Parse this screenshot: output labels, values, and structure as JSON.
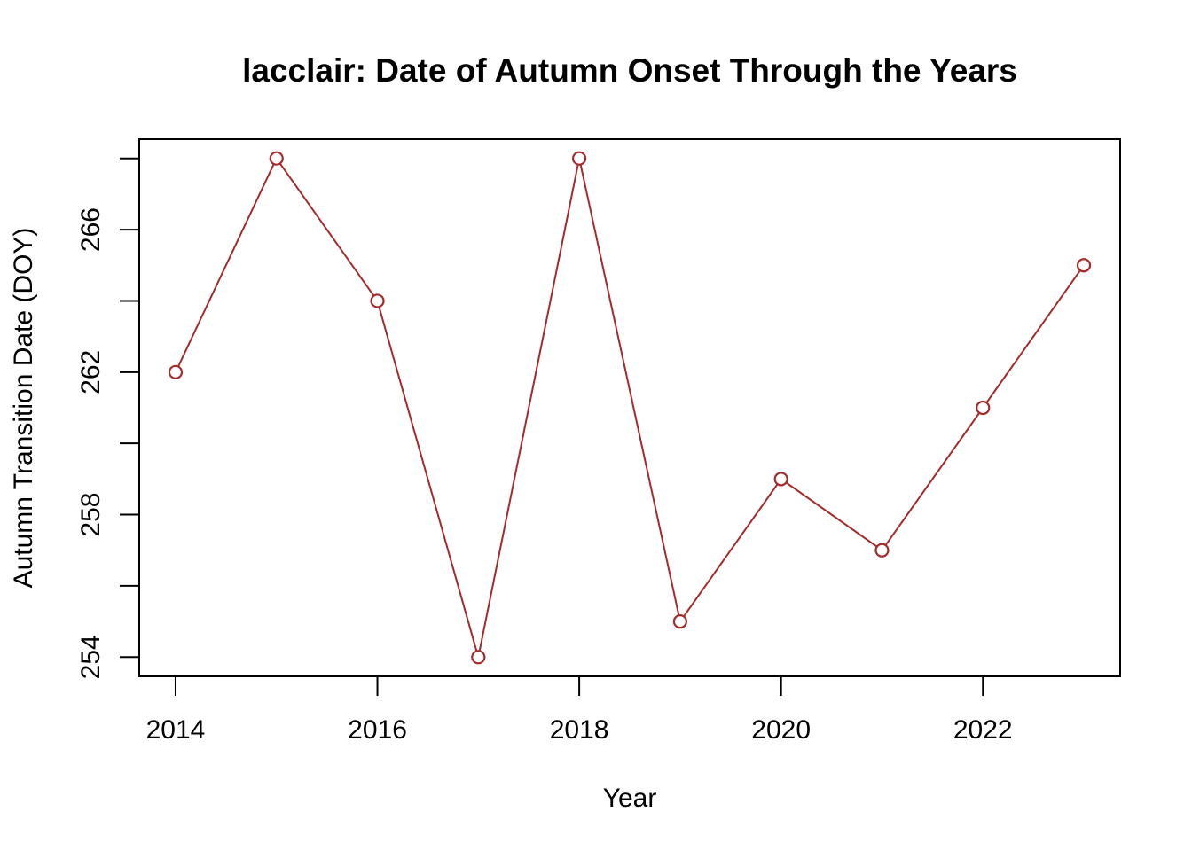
{
  "chart_data": {
    "type": "line",
    "title": "lacclair: Date of Autumn Onset Through the Years",
    "xlabel": "Year",
    "ylabel": "Autumn Transition Date (DOY)",
    "x": [
      2014,
      2015,
      2016,
      2017,
      2018,
      2019,
      2020,
      2021,
      2022,
      2023
    ],
    "series": [
      {
        "values": [
          262,
          268,
          264,
          254,
          268,
          255,
          259,
          257,
          261,
          265
        ]
      }
    ],
    "xticks": [
      2014,
      2016,
      2018,
      2020,
      2022
    ],
    "xtick_labels": [
      "2014",
      "2016",
      "2018",
      "2020",
      "2022"
    ],
    "yticks": [
      254,
      256,
      258,
      260,
      262,
      264,
      266,
      268
    ],
    "ytick_labels": [
      "254",
      "",
      "258",
      "",
      "262",
      "",
      "266",
      ""
    ],
    "xlim": [
      2013.64,
      2023.36
    ],
    "ylim": [
      253.46,
      268.54
    ],
    "grid": false,
    "markers": "open-circle",
    "line_color": "#a52a2a"
  }
}
